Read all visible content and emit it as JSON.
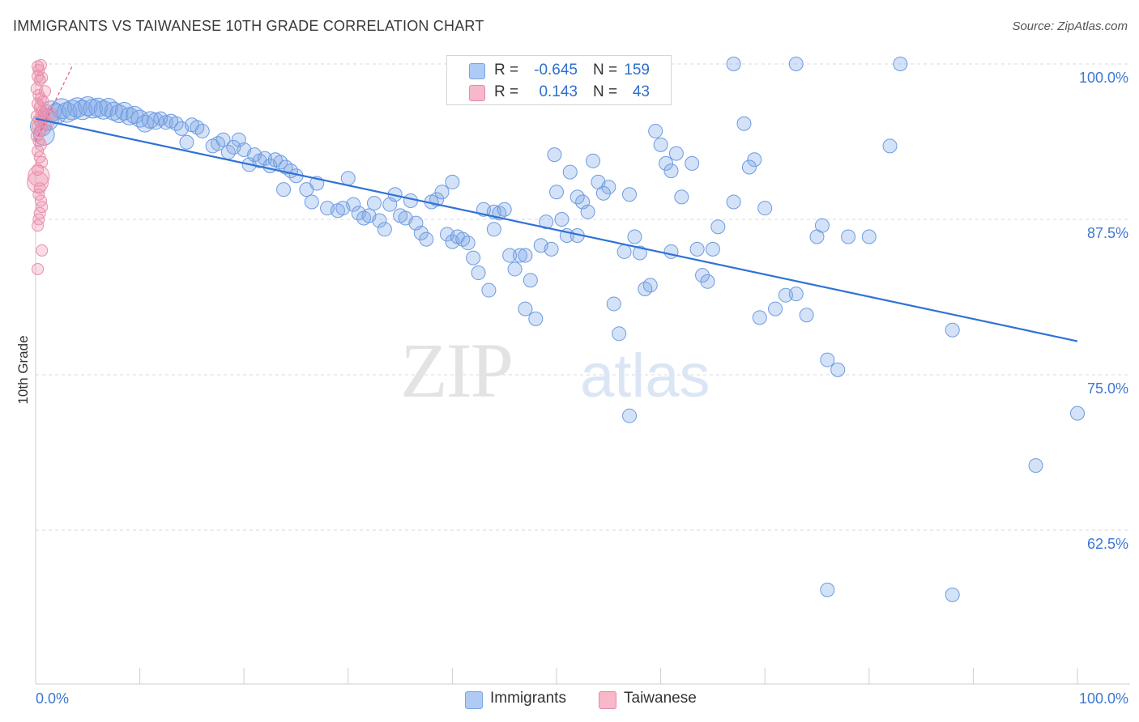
{
  "header": {
    "title": "IMMIGRANTS VS TAIWANESE 10TH GRADE CORRELATION CHART",
    "source": "Source: ZipAtlas.com"
  },
  "legend": {
    "rows": [
      {
        "r_label": "R =",
        "r_value": "-0.645",
        "n_label": "N =",
        "n_value": "159",
        "swatch_color": "#aecbf5",
        "swatch_border": "#7aa5e0"
      },
      {
        "r_label": "R =",
        "r_value": "0.143",
        "n_label": "N =",
        "n_value": "43",
        "swatch_color": "#f7b8c9",
        "swatch_border": "#e78aa6"
      }
    ]
  },
  "bottom_legend": {
    "items": [
      {
        "label": "Immigrants",
        "color": "#aecbf5",
        "border": "#7aa5e0"
      },
      {
        "label": "Taiwanese",
        "color": "#f7b8c9",
        "border": "#e78aa6"
      }
    ]
  },
  "watermark": {
    "zip": "ZIP",
    "atlas": "atlas"
  },
  "colors": {
    "blue_fill": "rgba(120,165,230,0.32)",
    "blue_stroke": "#6d9be0",
    "blue_line": "#2f72d6",
    "pink_fill": "rgba(240,140,170,0.30)",
    "pink_stroke": "#e890ad",
    "pink_line": "#e05a86",
    "grid": "#d9d9d9",
    "tick_label": "#3d78d0"
  },
  "chart_data": {
    "type": "scatter",
    "title": "IMMIGRANTS VS TAIWANESE 10TH GRADE CORRELATION CHART",
    "xlabel": "",
    "ylabel": "10th Grade",
    "xlim": [
      0,
      100
    ],
    "ylim": [
      50,
      100
    ],
    "x_tick_labels": [
      "0.0%",
      "100.0%"
    ],
    "y_ticks": [
      62.5,
      75.0,
      87.5,
      100.0
    ],
    "y_tick_labels": [
      "62.5%",
      "75.0%",
      "87.5%",
      "100.0%"
    ],
    "grid": true,
    "legend_position": "top-center",
    "series": [
      {
        "name": "Immigrants",
        "r": -0.645,
        "n": 159,
        "trend": {
          "x": [
            0,
            100
          ],
          "y": [
            95.6,
            77.7
          ]
        },
        "points": [
          [
            0.5,
            95.0
          ],
          [
            0.8,
            94.3
          ],
          [
            1.2,
            95.5
          ],
          [
            1.5,
            96.2
          ],
          [
            2.0,
            96.0
          ],
          [
            2.5,
            96.4
          ],
          [
            3.0,
            96.1
          ],
          [
            3.5,
            96.3
          ],
          [
            4.0,
            96.5
          ],
          [
            4.5,
            96.3
          ],
          [
            5.0,
            96.6
          ],
          [
            5.5,
            96.4
          ],
          [
            6.0,
            96.5
          ],
          [
            6.5,
            96.3
          ],
          [
            7.0,
            96.5
          ],
          [
            7.5,
            96.2
          ],
          [
            8.0,
            96.0
          ],
          [
            8.5,
            96.2
          ],
          [
            9.0,
            95.8
          ],
          [
            9.5,
            95.9
          ],
          [
            10.0,
            95.6
          ],
          [
            10.5,
            95.2
          ],
          [
            11.0,
            95.5
          ],
          [
            11.5,
            95.4
          ],
          [
            12.0,
            95.6
          ],
          [
            12.5,
            95.3
          ],
          [
            13.0,
            95.4
          ],
          [
            13.5,
            95.2
          ],
          [
            14.0,
            94.8
          ],
          [
            14.5,
            93.7
          ],
          [
            15.0,
            95.1
          ],
          [
            15.5,
            94.9
          ],
          [
            16.0,
            94.6
          ],
          [
            17.0,
            93.4
          ],
          [
            17.5,
            93.6
          ],
          [
            18.0,
            93.9
          ],
          [
            18.5,
            92.9
          ],
          [
            19.0,
            93.3
          ],
          [
            19.5,
            93.9
          ],
          [
            20.0,
            93.1
          ],
          [
            20.5,
            91.9
          ],
          [
            21.0,
            92.7
          ],
          [
            21.5,
            92.2
          ],
          [
            22.0,
            92.4
          ],
          [
            22.5,
            91.8
          ],
          [
            23.0,
            92.3
          ],
          [
            23.5,
            92.1
          ],
          [
            24.0,
            91.7
          ],
          [
            24.5,
            91.4
          ],
          [
            25.0,
            91.0
          ],
          [
            23.8,
            89.9
          ],
          [
            26.0,
            89.9
          ],
          [
            26.5,
            88.9
          ],
          [
            27.0,
            90.4
          ],
          [
            28.0,
            88.4
          ],
          [
            29.0,
            88.2
          ],
          [
            29.5,
            88.4
          ],
          [
            30.0,
            90.8
          ],
          [
            30.5,
            88.7
          ],
          [
            31.0,
            88.0
          ],
          [
            31.5,
            87.6
          ],
          [
            32.0,
            87.8
          ],
          [
            32.5,
            88.8
          ],
          [
            33.0,
            87.4
          ],
          [
            33.5,
            86.7
          ],
          [
            34.0,
            88.7
          ],
          [
            34.5,
            89.5
          ],
          [
            35.0,
            87.8
          ],
          [
            35.5,
            87.6
          ],
          [
            36.0,
            89.0
          ],
          [
            36.5,
            87.2
          ],
          [
            37.0,
            86.4
          ],
          [
            37.5,
            85.9
          ],
          [
            38.0,
            88.9
          ],
          [
            38.5,
            89.1
          ],
          [
            39.0,
            89.7
          ],
          [
            39.5,
            86.3
          ],
          [
            40.0,
            85.7
          ],
          [
            40.5,
            86.1
          ],
          [
            41.0,
            85.9
          ],
          [
            41.5,
            85.6
          ],
          [
            42.0,
            84.4
          ],
          [
            42.5,
            83.2
          ],
          [
            43.0,
            88.3
          ],
          [
            43.5,
            81.8
          ],
          [
            44.0,
            88.1
          ],
          [
            44.5,
            88.0
          ],
          [
            45.0,
            88.3
          ],
          [
            45.5,
            84.6
          ],
          [
            46.0,
            83.5
          ],
          [
            46.5,
            84.6
          ],
          [
            47.0,
            84.6
          ],
          [
            47.5,
            82.6
          ],
          [
            48.0,
            79.5
          ],
          [
            48.5,
            85.4
          ],
          [
            49.0,
            87.3
          ],
          [
            49.5,
            85.1
          ],
          [
            50.0,
            89.7
          ],
          [
            50.5,
            87.5
          ],
          [
            51.0,
            86.2
          ],
          [
            49.8,
            92.7
          ],
          [
            51.3,
            91.3
          ],
          [
            52.0,
            89.3
          ],
          [
            52.5,
            88.9
          ],
          [
            53.0,
            88.1
          ],
          [
            53.5,
            92.2
          ],
          [
            54.0,
            90.5
          ],
          [
            54.5,
            89.6
          ],
          [
            55.0,
            90.1
          ],
          [
            55.5,
            80.7
          ],
          [
            56.0,
            78.3
          ],
          [
            56.5,
            84.9
          ],
          [
            57.0,
            89.5
          ],
          [
            57.5,
            86.1
          ],
          [
            58.0,
            84.8
          ],
          [
            58.5,
            81.9
          ],
          [
            59.0,
            82.2
          ],
          [
            59.5,
            94.6
          ],
          [
            60.0,
            93.5
          ],
          [
            60.5,
            92.0
          ],
          [
            61.0,
            91.4
          ],
          [
            61.5,
            92.8
          ],
          [
            62.0,
            89.3
          ],
          [
            63.0,
            92.0
          ],
          [
            63.5,
            85.1
          ],
          [
            64.0,
            83.0
          ],
          [
            64.5,
            82.5
          ],
          [
            65.0,
            85.1
          ],
          [
            65.5,
            86.9
          ],
          [
            67.0,
            88.9
          ],
          [
            68.0,
            95.2
          ],
          [
            69.0,
            92.3
          ],
          [
            69.5,
            79.6
          ],
          [
            70.0,
            88.4
          ],
          [
            71.0,
            80.3
          ],
          [
            72.0,
            81.4
          ],
          [
            73.0,
            81.5
          ],
          [
            74.0,
            79.8
          ],
          [
            75.0,
            86.1
          ],
          [
            75.5,
            87.0
          ],
          [
            76.0,
            76.2
          ],
          [
            77.0,
            75.4
          ],
          [
            78.0,
            86.1
          ],
          [
            80.0,
            86.1
          ],
          [
            82.0,
            93.4
          ],
          [
            73.0,
            100.0
          ],
          [
            67.0,
            100.0
          ],
          [
            83.0,
            100.0
          ],
          [
            88.0,
            78.6
          ],
          [
            100.0,
            71.9
          ],
          [
            96.0,
            67.7
          ],
          [
            76.0,
            57.7
          ],
          [
            88.0,
            57.3
          ],
          [
            68.5,
            91.7
          ],
          [
            57.0,
            71.7
          ],
          [
            40.0,
            90.5
          ],
          [
            44.0,
            86.7
          ],
          [
            52.0,
            86.2
          ],
          [
            61.0,
            84.9
          ],
          [
            47.0,
            80.3
          ]
        ]
      },
      {
        "name": "Taiwanese",
        "r": 0.143,
        "n": 43,
        "trend": {
          "x": [
            0,
            3.5
          ],
          "y": [
            93.8,
            99.8
          ]
        },
        "points": [
          [
            0.2,
            99.8
          ],
          [
            0.3,
            99.5
          ],
          [
            0.5,
            99.9
          ],
          [
            0.2,
            99.0
          ],
          [
            0.4,
            98.7
          ],
          [
            0.6,
            98.9
          ],
          [
            0.1,
            98.0
          ],
          [
            0.3,
            97.5
          ],
          [
            0.5,
            97.2
          ],
          [
            0.7,
            97.0
          ],
          [
            0.2,
            96.8
          ],
          [
            0.4,
            96.5
          ],
          [
            0.6,
            96.2
          ],
          [
            0.8,
            96.0
          ],
          [
            1.0,
            96.3
          ],
          [
            0.1,
            95.8
          ],
          [
            0.3,
            95.5
          ],
          [
            0.5,
            95.3
          ],
          [
            0.7,
            95.6
          ],
          [
            0.2,
            95.0
          ],
          [
            0.4,
            94.6
          ],
          [
            0.6,
            94.8
          ],
          [
            0.1,
            94.2
          ],
          [
            0.3,
            93.8
          ],
          [
            0.5,
            93.5
          ],
          [
            0.2,
            93.0
          ],
          [
            0.4,
            92.5
          ],
          [
            0.6,
            92.1
          ],
          [
            0.2,
            91.5
          ],
          [
            0.3,
            91.0
          ],
          [
            0.2,
            90.5
          ],
          [
            0.4,
            90.0
          ],
          [
            0.3,
            89.5
          ],
          [
            0.5,
            89.0
          ],
          [
            0.6,
            88.5
          ],
          [
            0.4,
            88.0
          ],
          [
            0.3,
            87.5
          ],
          [
            0.2,
            87.0
          ],
          [
            0.6,
            85.0
          ],
          [
            0.2,
            83.5
          ],
          [
            1.5,
            96.0
          ],
          [
            1.2,
            95.2
          ],
          [
            0.9,
            97.8
          ]
        ]
      }
    ]
  }
}
